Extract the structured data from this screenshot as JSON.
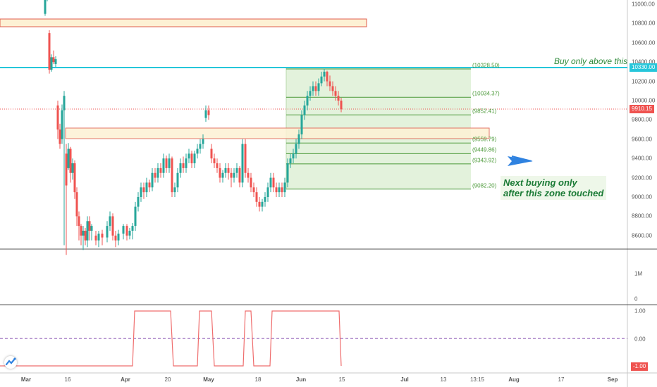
{
  "price_axis": {
    "labels": [
      "11000.00",
      "10800.00",
      "10600.00",
      "10400.00",
      "10200.00",
      "10000.00",
      "9800.00",
      "9600.00",
      "9400.00",
      "9200.00",
      "9000.00",
      "8800.00",
      "8600.00"
    ],
    "values": [
      11000,
      10800,
      10600,
      10400,
      10200,
      10000,
      9800,
      9600,
      9400,
      9200,
      9000,
      8800,
      8600
    ],
    "tag_level": "10330.00",
    "tag_current": "9910.15"
  },
  "volume_axis": {
    "labels": [
      "1M",
      "0"
    ]
  },
  "indicator_axis": {
    "labels": [
      "1.00",
      "0.00"
    ],
    "tag": "-1.00"
  },
  "time_axis": {
    "labels": [
      "Mar",
      "16",
      "Apr",
      "20",
      "May",
      "18",
      "Jun",
      "15",
      "Jul",
      "13",
      "13:15",
      "Aug",
      "17",
      "Sep"
    ],
    "bold": [
      "Mar",
      "Apr",
      "May",
      "Jun",
      "Jul",
      "Aug",
      "Sep"
    ]
  },
  "fib_levels": {
    "labels": [
      "(10328.50)",
      "(10034.37)",
      "(9852.41)",
      "(9559.79)",
      "(9449.86)",
      "(9343.92)",
      "(9082.20)"
    ],
    "values": [
      10328.5,
      10034.37,
      9852.41,
      9559.79,
      9449.86,
      9343.92,
      9082.2
    ]
  },
  "annotations": {
    "buy_above": "Buy only above this",
    "next_buying_line1": "Next buying only",
    "next_buying_line2": "after this zone touched"
  },
  "colors": {
    "level_line": "#26c6da",
    "tag_level_bg": "#26c6da",
    "tag_current_bg": "#ef5350",
    "up_candle": "#26a69a",
    "down_candle": "#ef5350",
    "fib_fill": "#dcefd3",
    "fib_line": "#4c9a3a",
    "zone_fill": "#fdf1d4",
    "zone_border": "#e05d4d",
    "arrow": "#2f82e0",
    "indicator_line": "#ef6d6d",
    "indicator_zero": "#7b3fa8",
    "note_text": "#1a7a35"
  },
  "icons": {
    "logo": "tradingview-logo-icon",
    "arrow": "left-arrow-icon"
  }
}
